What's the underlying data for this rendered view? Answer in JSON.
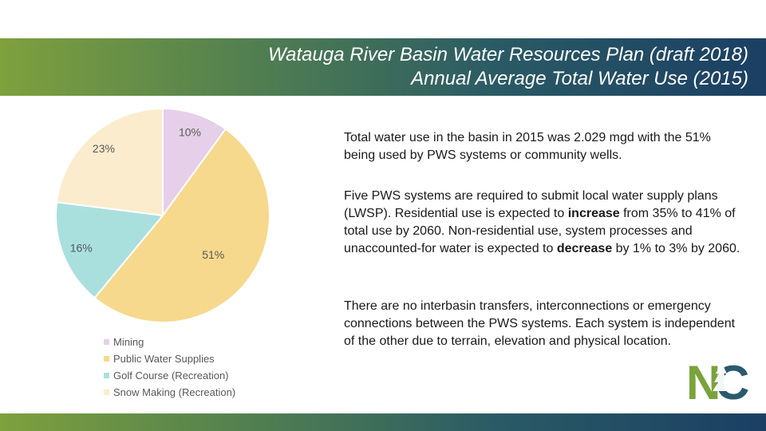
{
  "header": {
    "title_line1": "Watauga River Basin Water Resources Plan (draft 2018)",
    "title_line2": "Annual Average Total Water Use (2015)"
  },
  "chart_data": {
    "type": "pie",
    "slices": [
      {
        "name": "Mining",
        "value": 10,
        "label": "10%",
        "color": "#e6cfe9"
      },
      {
        "name": "Public Water Supplies",
        "value": 51,
        "label": "51%",
        "color": "#f6d98c"
      },
      {
        "name": "Golf Course (Recreation)",
        "value": 16,
        "label": "16%",
        "color": "#a9e0de"
      },
      {
        "name": "Snow Making (Recreation)",
        "value": 23,
        "label": "23%",
        "color": "#fbeccd"
      }
    ],
    "legend_position": "bottom-left"
  },
  "legend": {
    "items": [
      "Mining",
      "Public Water Supplies",
      "Golf Course (Recreation)",
      "Snow Making (Recreation)"
    ]
  },
  "text": {
    "p1": "Total water use in the basin in 2015 was 2.029 mgd with the 51% being used by PWS systems or community wells.",
    "p2_a": "Five PWS systems are required to submit local water supply plans (LWSP). Residential use is expected to ",
    "p2_b": "increase",
    "p2_c": " from 35% to 41% of total use by 2060. Non-residential use, system processes and unaccounted-for water is expected to ",
    "p2_d": "decrease",
    "p2_e": " by 1% to 3% by 2060.",
    "p3": "There are no interbasin transfers, interconnections or emergency connections between the PWS systems. Each system is independent of the other due to terrain, elevation and physical location."
  },
  "logo": {
    "text": "NC",
    "colors": {
      "n": "#7aa33b",
      "c": "#2a5a6e"
    }
  }
}
